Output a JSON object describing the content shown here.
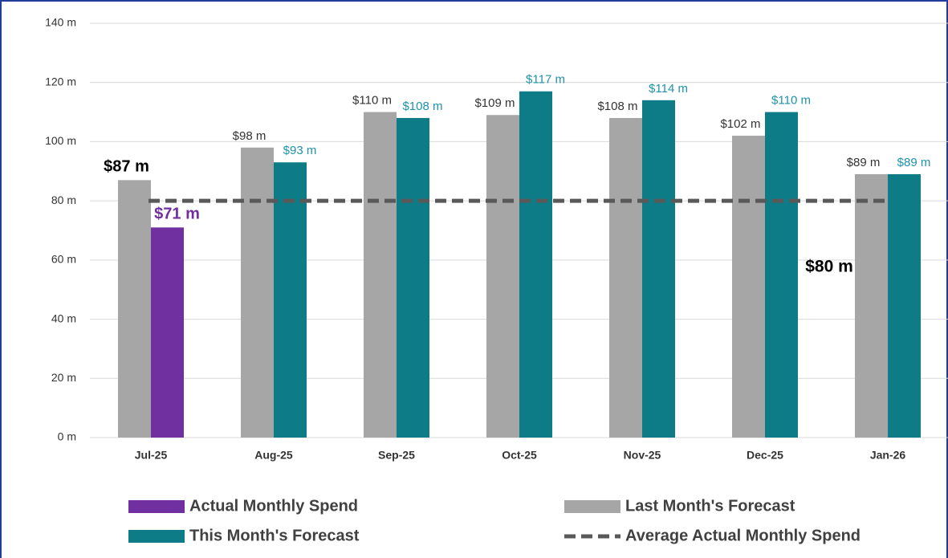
{
  "chart_data": {
    "type": "bar",
    "categories": [
      "Jul-25",
      "Aug-25",
      "Sep-25",
      "Oct-25",
      "Nov-25",
      "Dec-25",
      "Jan-26"
    ],
    "series": [
      {
        "name": "Actual Monthly Spend",
        "color": "#7030a0",
        "values": [
          71,
          null,
          null,
          null,
          null,
          null,
          null
        ],
        "value_labels": [
          "$71 m",
          null,
          null,
          null,
          null,
          null,
          null
        ]
      },
      {
        "name": "Last Month's Forecast",
        "color": "#a6a6a6",
        "values": [
          87,
          98,
          110,
          109,
          108,
          102,
          89
        ],
        "value_labels": [
          "$87 m",
          "$98 m",
          "$110 m",
          "$109 m",
          "$108 m",
          "$102 m",
          "$89 m"
        ]
      },
      {
        "name": "This Month's Forecast",
        "color": "#0e7c86",
        "values": [
          null,
          93,
          108,
          117,
          114,
          110,
          89
        ],
        "value_labels": [
          null,
          "$93 m",
          "$108 m",
          "$117 m",
          "$114 m",
          "$110 m",
          "$89 m"
        ]
      }
    ],
    "average": {
      "name": "Average Actual Monthly Spend",
      "color": "#595959",
      "value": 80,
      "value_label": "$80 m"
    },
    "ylim": [
      0,
      140
    ],
    "yticks": [
      {
        "value": 0,
        "label": "0 m"
      },
      {
        "value": 20,
        "label": "20 m"
      },
      {
        "value": 40,
        "label": "40 m"
      },
      {
        "value": 60,
        "label": "60 m"
      },
      {
        "value": 80,
        "label": "80 m"
      },
      {
        "value": 100,
        "label": "100 m"
      },
      {
        "value": 120,
        "label": "120 m"
      },
      {
        "value": 140,
        "label": "140 m"
      }
    ],
    "grid": true
  }
}
